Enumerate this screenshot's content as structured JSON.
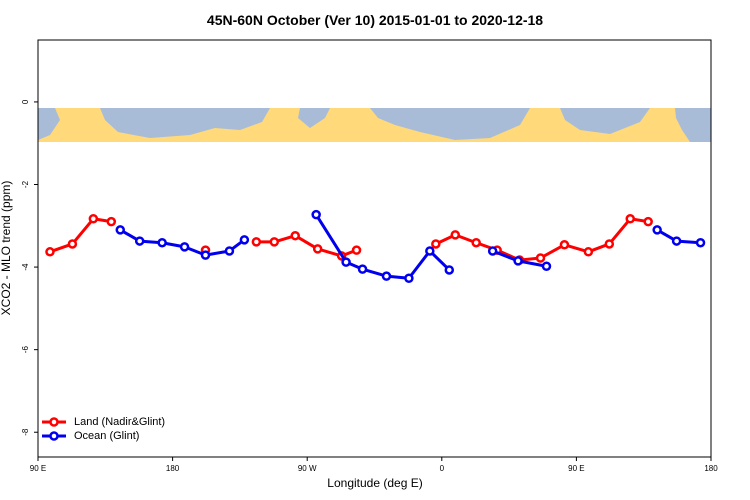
{
  "chart_data": {
    "type": "line",
    "title": "45N-60N October (Ver 10)   2015-01-01 to 2020-12-18",
    "x_label": "Longitude (deg E)",
    "y_label": "XCO2 - MLO trend (ppm)",
    "xlim": [
      90,
      540
    ],
    "ylim": [
      -8.6,
      1.5
    ],
    "xticks": [
      {
        "value": 90,
        "label": "90 E"
      },
      {
        "value": 180,
        "label": "180"
      },
      {
        "value": 270,
        "label": "90 W"
      },
      {
        "value": 360,
        "label": "0"
      },
      {
        "value": 450,
        "label": "90 E"
      },
      {
        "value": 540,
        "label": "180"
      }
    ],
    "yticks": [
      0,
      -2,
      -4,
      -6,
      -8
    ],
    "legend": "bottom-left",
    "series": [
      {
        "name": "Land (Nadir&Glint)",
        "color": "#ff0000",
        "x": [
          98,
          113,
          127,
          139,
          null,
          202,
          null,
          236,
          248,
          262,
          277,
          293,
          303,
          null,
          356,
          369,
          383,
          397,
          412,
          426,
          442,
          458,
          472,
          486,
          498
        ],
        "values": [
          -3.63,
          -3.44,
          -2.83,
          -2.9,
          null,
          -3.59,
          null,
          -3.39,
          -3.39,
          -3.24,
          -3.56,
          -3.73,
          -3.59,
          null,
          -3.44,
          -3.22,
          -3.41,
          -3.59,
          -3.83,
          -3.78,
          -3.46,
          -3.63,
          -3.44,
          -2.83,
          -2.9
        ]
      },
      {
        "name": "Ocean (Glint)",
        "color": "#0000ee",
        "x": [
          145,
          158,
          173,
          188,
          202,
          218,
          228,
          null,
          276,
          296,
          307,
          323,
          338,
          352,
          365,
          null,
          394,
          411,
          430,
          null,
          504,
          517,
          533
        ],
        "values": [
          -3.1,
          -3.37,
          -3.41,
          -3.51,
          -3.71,
          -3.61,
          -3.34,
          null,
          -2.73,
          -3.88,
          -4.05,
          -4.22,
          -4.27,
          -3.61,
          -4.07,
          null,
          -3.61,
          -3.85,
          -3.98,
          null,
          -3.1,
          -3.37,
          -3.41
        ]
      }
    ]
  }
}
